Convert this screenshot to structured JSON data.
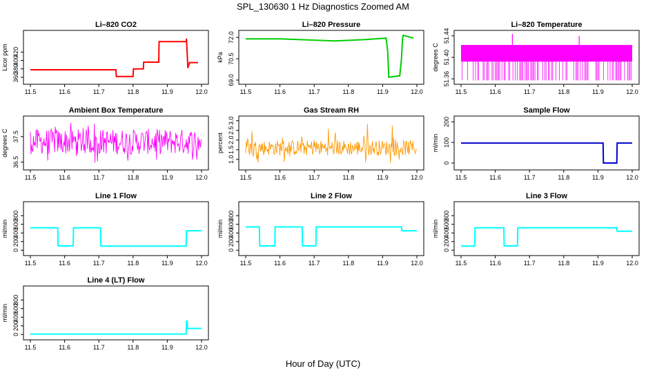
{
  "figure": {
    "title": "SPL_130630  1 Hz Diagnostics Zoomed AM",
    "xlabel": "Hour of Day (UTC)"
  },
  "chart_data": [
    {
      "type": "line",
      "title": "Li–820 CO2",
      "ylabel": "Licor ppm",
      "color": "#ff0000",
      "xlim": [
        11.5,
        12.0
      ],
      "xticks": [
        "11.5",
        "11.6",
        "11.7",
        "11.8",
        "11.9",
        "12.0"
      ],
      "ylim": [
        350,
        465
      ],
      "yticks": [
        "360",
        "380",
        "400",
        "420"
      ],
      "series": [
        {
          "style": "steps",
          "x": [
            11.5,
            11.75,
            11.751,
            11.8,
            11.801,
            11.83,
            11.831,
            11.875,
            11.876,
            11.955,
            11.956,
            11.96,
            11.965,
            11.99
          ],
          "y": [
            378,
            378,
            362,
            362,
            380,
            380,
            396,
            396,
            445,
            445,
            452,
            382,
            395,
            395
          ]
        }
      ]
    },
    {
      "type": "line",
      "title": "Li–820 Pressure",
      "ylabel": "kPa",
      "color": "#00cc00",
      "xlim": [
        11.5,
        12.0
      ],
      "xticks": [
        "11.5",
        "11.6",
        "11.7",
        "11.8",
        "11.9",
        "12.0"
      ],
      "ylim": [
        68.9,
        72.3
      ],
      "yticks": [
        "69.0",
        "70.5",
        "72.0"
      ],
      "series": [
        {
          "style": "line",
          "x": [
            11.5,
            11.6,
            11.76,
            11.85,
            11.91,
            11.915,
            11.918,
            11.95,
            11.955,
            11.958,
            11.96,
            11.99
          ],
          "y": [
            71.9,
            71.9,
            71.75,
            71.85,
            71.95,
            71.0,
            69.2,
            69.3,
            70.5,
            71.9,
            72.15,
            71.95
          ]
        }
      ]
    },
    {
      "type": "line",
      "title": "Li–820 Temperature",
      "ylabel": "degrees C",
      "color": "#ff00ff",
      "xlim": [
        11.5,
        12.0
      ],
      "xticks": [
        "11.5",
        "11.6",
        "11.7",
        "11.8",
        "11.9",
        "12.0"
      ],
      "ylim": [
        51.355,
        51.445
      ],
      "yticks": [
        "51.36",
        "51.40",
        "51.44"
      ],
      "series": [
        {
          "style": "band",
          "x": [
            11.5,
            12.0
          ],
          "band": [
            51.392,
            51.423
          ],
          "spike_low": 51.357,
          "spikes_up": [
            [
              11.65,
              51.444
            ],
            [
              11.845,
              51.44
            ]
          ]
        }
      ]
    },
    {
      "type": "line",
      "title": "Ambient Box Temperature",
      "ylabel": "degrees C",
      "color": "#ff00ff",
      "xlim": [
        11.5,
        12.0
      ],
      "xticks": [
        "11.5",
        "11.6",
        "11.7",
        "11.8",
        "11.9",
        "12.0"
      ],
      "ylim": [
        36.3,
        38.2
      ],
      "yticks": [
        "36.5",
        "37.5"
      ],
      "series": [
        {
          "style": "noise",
          "x": [
            11.5,
            12.0
          ],
          "band": [
            36.8,
            37.8
          ],
          "extremes": [
            36.4,
            38.1
          ]
        }
      ]
    },
    {
      "type": "line",
      "title": "Gas Stream RH",
      "ylabel": "percent",
      "color": "#ff9900",
      "xlim": [
        11.5,
        12.0
      ],
      "xticks": [
        "11.5",
        "11.6",
        "11.7",
        "11.8",
        "11.9",
        "12.0"
      ],
      "ylim": [
        0.6,
        3.1
      ],
      "yticks": [
        "1.0",
        "1.5",
        "2.0",
        "2.5",
        "3.0"
      ],
      "series": [
        {
          "style": "noise",
          "x": [
            11.5,
            12.0
          ],
          "band": [
            1.2,
            2.0
          ],
          "extremes": [
            0.8,
            2.9
          ]
        }
      ]
    },
    {
      "type": "line",
      "title": "Sample Flow",
      "ylabel": "ml/min",
      "color": "#0000cc",
      "xlim": [
        11.5,
        12.0
      ],
      "xticks": [
        "11.5",
        "11.6",
        "11.7",
        "11.8",
        "11.9",
        "12.0"
      ],
      "ylim": [
        -20,
        215
      ],
      "yticks": [
        "0",
        "100",
        "200"
      ],
      "series": [
        {
          "style": "steps",
          "x": [
            11.5,
            11.915,
            11.916,
            11.955,
            11.956,
            12.0
          ],
          "y": [
            97,
            97,
            0,
            0,
            97,
            97
          ]
        }
      ]
    },
    {
      "type": "line",
      "title": "Line 1 Flow",
      "ylabel": "ml/min",
      "color": "#00ffff",
      "xlim": [
        11.5,
        12.0
      ],
      "xticks": [
        "11.5",
        "11.6",
        "11.7",
        "11.8",
        "11.9",
        "12.0"
      ],
      "ylim": [
        -60,
        1060
      ],
      "yticks": [
        "0",
        "200",
        "400",
        "600",
        "800"
      ],
      "series": [
        {
          "style": "steps",
          "x": [
            11.5,
            11.58,
            11.581,
            11.625,
            11.626,
            11.705,
            11.706,
            11.955,
            11.956,
            12.0
          ],
          "y": [
            520,
            520,
            100,
            100,
            520,
            520,
            95,
            95,
            450,
            450
          ]
        }
      ]
    },
    {
      "type": "line",
      "title": "Line 2 Flow",
      "ylabel": "ml/min",
      "color": "#00ffff",
      "xlim": [
        11.5,
        12.0
      ],
      "xticks": [
        "11.5",
        "11.6",
        "11.7",
        "11.8",
        "11.9",
        "12.0"
      ],
      "ylim": [
        -60,
        1060
      ],
      "yticks": [
        "0",
        "200",
        "400",
        "600",
        "800"
      ],
      "series": [
        {
          "style": "steps",
          "x": [
            11.5,
            11.54,
            11.541,
            11.585,
            11.586,
            11.665,
            11.666,
            11.705,
            11.706,
            11.955,
            11.956,
            12.0
          ],
          "y": [
            540,
            540,
            100,
            100,
            540,
            540,
            100,
            100,
            540,
            540,
            450,
            450
          ]
        }
      ]
    },
    {
      "type": "line",
      "title": "Line 3 Flow",
      "ylabel": "ml/min",
      "color": "#00ffff",
      "xlim": [
        11.5,
        12.0
      ],
      "xticks": [
        "11.5",
        "11.6",
        "11.7",
        "11.8",
        "11.9",
        "12.0"
      ],
      "ylim": [
        -60,
        1060
      ],
      "yticks": [
        "0",
        "200",
        "400",
        "600",
        "800"
      ],
      "series": [
        {
          "style": "steps",
          "x": [
            11.5,
            11.54,
            11.541,
            11.625,
            11.626,
            11.665,
            11.666,
            11.955,
            11.956,
            12.0
          ],
          "y": [
            95,
            95,
            520,
            520,
            100,
            100,
            520,
            520,
            440,
            440
          ]
        }
      ]
    },
    {
      "type": "line",
      "title": "Line 4 (LT) Flow",
      "ylabel": "ml/min",
      "color": "#00ffff",
      "xlim": [
        11.5,
        12.0
      ],
      "xticks": [
        "11.5",
        "11.6",
        "11.7",
        "11.8",
        "11.9",
        "12.0"
      ],
      "ylim": [
        -60,
        1060
      ],
      "yticks": [
        "0",
        "200",
        "400",
        "600",
        "800"
      ],
      "series": [
        {
          "style": "steps",
          "x": [
            11.5,
            11.955,
            11.956,
            11.958,
            11.959,
            12.0
          ],
          "y": [
            10,
            10,
            310,
            310,
            140,
            140
          ]
        }
      ]
    }
  ]
}
